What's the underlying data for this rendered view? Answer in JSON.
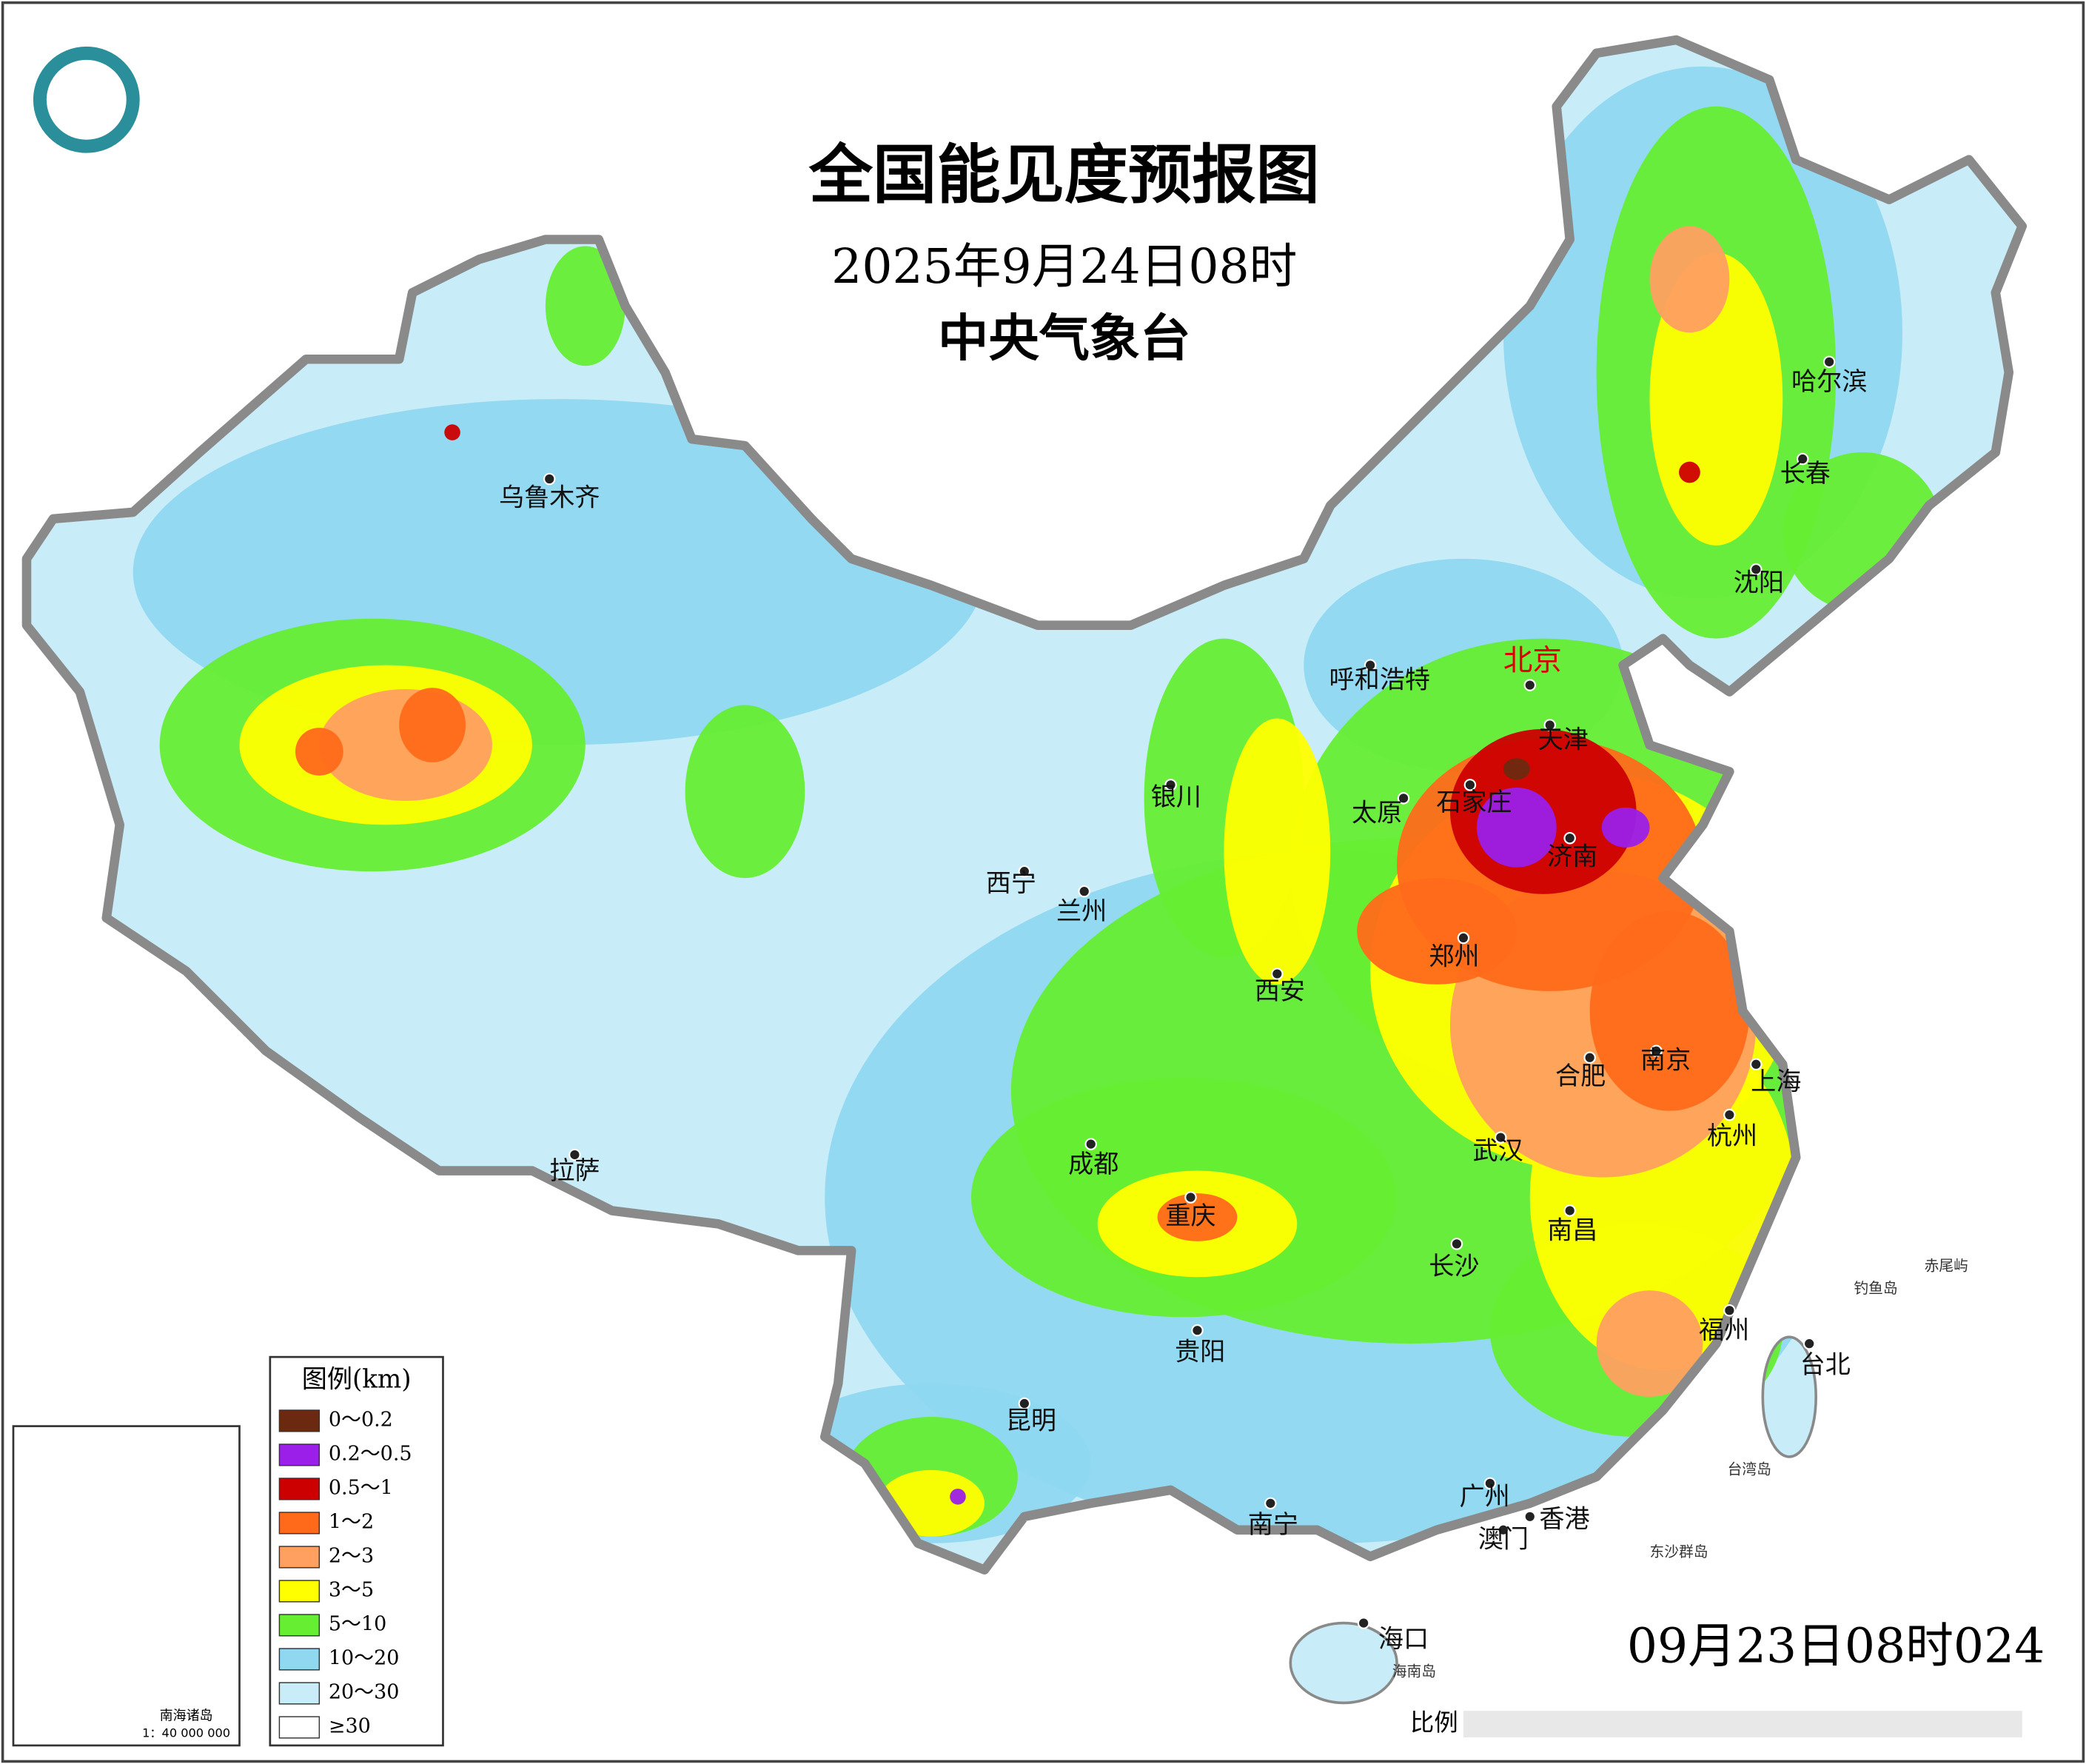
{
  "header": {
    "title": "全国能见度预报图",
    "subtitle": "2025年9月24日08时",
    "issuer": "中央气象台"
  },
  "legend": {
    "title": "图例(km)",
    "items": [
      {
        "label": "0～0.2",
        "color": "#6b2a10"
      },
      {
        "label": "0.2～0.5",
        "color": "#9b1fe8"
      },
      {
        "label": "0.5～1",
        "color": "#cc0000"
      },
      {
        "label": "1～2",
        "color": "#ff6a1a"
      },
      {
        "label": "2～3",
        "color": "#ffa060"
      },
      {
        "label": "3～5",
        "color": "#ffff00"
      },
      {
        "label": "5～10",
        "color": "#66ee33"
      },
      {
        "label": "10～20",
        "color": "#8fd8f0"
      },
      {
        "label": "20～30",
        "color": "#c8ecf8"
      },
      {
        "label": "≥30",
        "color": "#ffffff"
      }
    ]
  },
  "cities": [
    "乌鲁木齐",
    "哈尔滨",
    "长春",
    "沈阳",
    "北京",
    "天津",
    "呼和浩特",
    "石家庄",
    "太原",
    "济南",
    "银川",
    "西宁",
    "兰州",
    "西安",
    "郑州",
    "合肥",
    "南京",
    "上海",
    "杭州",
    "武汉",
    "成都",
    "拉萨",
    "重庆",
    "南昌",
    "长沙",
    "福州",
    "台北",
    "贵阳",
    "昆明",
    "广州",
    "南宁",
    "香港",
    "澳门",
    "海口"
  ],
  "islands": [
    "台湾岛",
    "东沙群岛",
    "钓鱼岛",
    "赤尾屿",
    "海南岛"
  ],
  "inset": {
    "title": "南海诸岛",
    "scale": "1：40 000 000"
  },
  "footer": {
    "timestamp": "09月23日08时024",
    "scale_label": "比例"
  }
}
